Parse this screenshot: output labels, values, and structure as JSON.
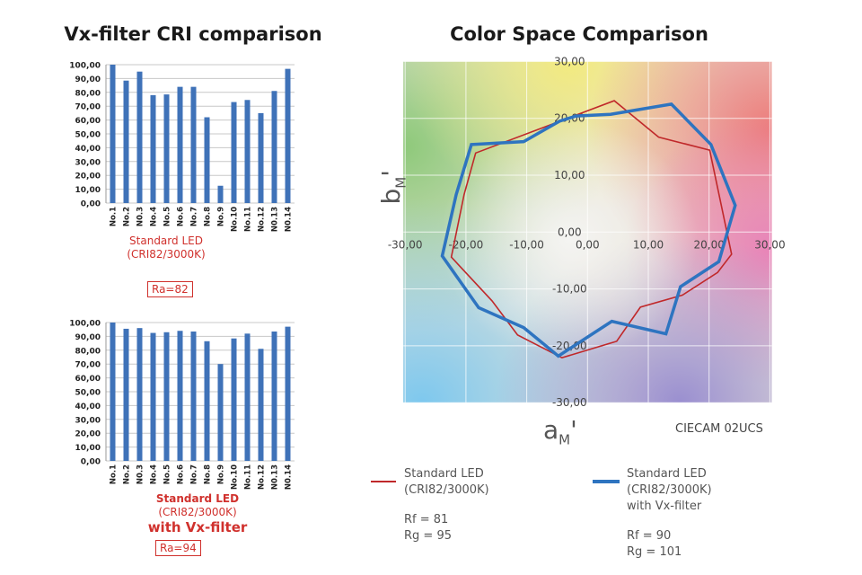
{
  "left_title": "Vx-filter CRI comparison",
  "right_title": "Color Space Comparison",
  "chart_data": [
    {
      "type": "bar",
      "categories": [
        "No.1",
        "No.2",
        "N0.3",
        "No.4",
        "No.5",
        "No.6",
        "No.7",
        "No.8",
        "No.9",
        "No.10",
        "No.11",
        "No.12",
        "N0.13",
        "N0.14"
      ],
      "values": [
        100,
        88.5,
        95,
        78,
        78.5,
        84,
        84,
        62,
        12.5,
        73,
        74.5,
        65,
        81,
        97
      ],
      "ylim": [
        0,
        100
      ],
      "yticks": [
        "0,00",
        "10,00",
        "20,00",
        "30,00",
        "40,00",
        "50,00",
        "60,00",
        "70,00",
        "80,00",
        "90,00",
        "100,00"
      ],
      "grid": true,
      "color": "#3f72b8",
      "caption": [
        "Standard LED",
        "(CRI82/3000K)"
      ],
      "ra_label": "Ra=82"
    },
    {
      "type": "bar",
      "categories": [
        "No.1",
        "No.2",
        "N0.3",
        "No.4",
        "No.5",
        "No.6",
        "No.7",
        "No.8",
        "No.9",
        "No.10",
        "No.11",
        "No.12",
        "N0.13",
        "N0.14"
      ],
      "values": [
        100,
        95.5,
        96,
        92.5,
        93,
        94,
        93.5,
        86.5,
        70,
        88.5,
        92,
        81,
        93.5,
        97
      ],
      "ylim": [
        0,
        100
      ],
      "yticks": [
        "0,00",
        "10,00",
        "20,00",
        "30,00",
        "40,00",
        "50,00",
        "60,00",
        "70,00",
        "80,00",
        "90,00",
        "100,00"
      ],
      "grid": true,
      "color": "#3f72b8",
      "caption": [
        "Standard LED",
        "(CRI82/3000K)"
      ],
      "caption_emphasis": "with Vx-filter",
      "ra_label": "Ra=94"
    },
    {
      "type": "line",
      "xlabel": "a",
      "xlabel_sub": "M",
      "ylabel": "b",
      "ylabel_sub": "M",
      "prime": "'",
      "note": "CIECAM 02UCS",
      "xlim": [
        -30,
        30
      ],
      "ylim": [
        -30,
        30
      ],
      "xticks": [
        "-30,00",
        "-20,00",
        "-10,00",
        "0,00",
        "10,00",
        "20,00",
        "30,00"
      ],
      "yticks": [
        "30,00",
        "20,00",
        "10,00",
        "0,00",
        "-10,00",
        "-20,00",
        "-30,00"
      ],
      "grid": true,
      "series": [
        {
          "name": "Standard LED (CRI82/3000K)",
          "legend": [
            "Standard LED",
            "(CRI82/3000K)"
          ],
          "stats": [
            "Rf = 81",
            "Rg = 95"
          ],
          "color": "#c0282a",
          "points": [
            [
              -18.4,
              13.9
            ],
            [
              4.4,
              23.1
            ],
            [
              11.7,
              16.7
            ],
            [
              20.1,
              14.4
            ],
            [
              23.7,
              -3.9
            ],
            [
              21.4,
              -7.1
            ],
            [
              15.6,
              -11.1
            ],
            [
              8.7,
              -13.2
            ],
            [
              4.8,
              -19.2
            ],
            [
              -4.2,
              -22.1
            ],
            [
              -11.5,
              -18.1
            ],
            [
              -15.7,
              -12.1
            ],
            [
              -22.4,
              -4.4
            ],
            [
              -20.3,
              6.6
            ]
          ]
        },
        {
          "name": "Standard LED (CRI82/3000K) with Vx-filter",
          "legend": [
            "Standard LED",
            "(CRI82/3000K)",
            "with Vx-filter"
          ],
          "stats": [
            "Rf = 90",
            "Rg = 101"
          ],
          "color": "#2e74c0",
          "points": [
            [
              -19.1,
              15.4
            ],
            [
              -10.5,
              15.9
            ],
            [
              -4.6,
              19.5
            ],
            [
              -1.9,
              20.4
            ],
            [
              3.8,
              20.7
            ],
            [
              13.8,
              22.5
            ],
            [
              20.3,
              15.4
            ],
            [
              24.3,
              4.7
            ],
            [
              21.6,
              -5.2
            ],
            [
              15.3,
              -9.6
            ],
            [
              12.9,
              -17.9
            ],
            [
              4.0,
              -15.7
            ],
            [
              -4.8,
              -21.8
            ],
            [
              -10.5,
              -16.8
            ],
            [
              -17.9,
              -13.3
            ],
            [
              -23.9,
              -4.2
            ],
            [
              -21.6,
              6.6
            ]
          ]
        }
      ]
    }
  ]
}
